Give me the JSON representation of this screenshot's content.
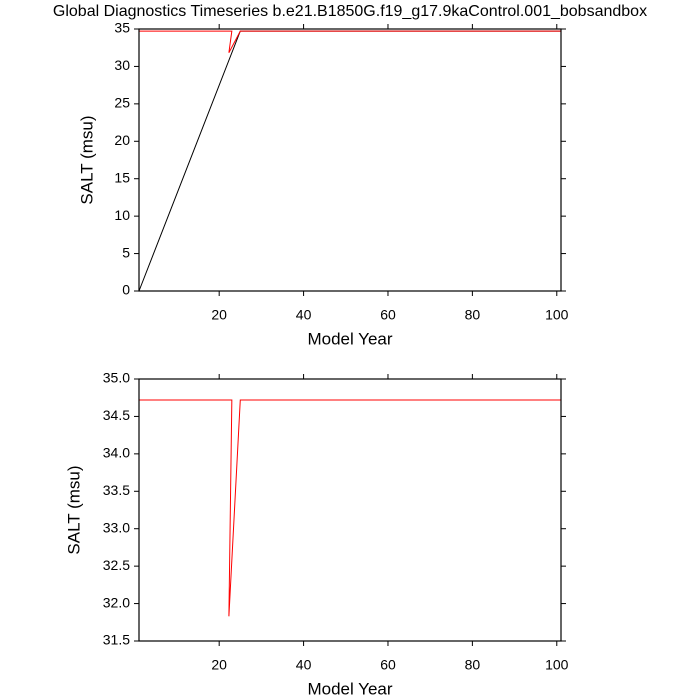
{
  "chart_data": [
    {
      "type": "line",
      "title": "Global Diagnostics Timeseries b.e21.B1850G.f19_g17.9kaControl.001_bobsandbox",
      "xlabel": "Model Year",
      "ylabel": "SALT (msu)",
      "xlim": [
        1,
        101
      ],
      "ylim": [
        0,
        35
      ],
      "xticks": [
        20,
        40,
        60,
        80,
        100
      ],
      "yticks": [
        0,
        5,
        10,
        15,
        20,
        25,
        30,
        35
      ],
      "series": [
        {
          "color": "#000000",
          "x": [
            1,
            25,
            101
          ],
          "values": [
            0,
            34.72,
            34.72
          ]
        },
        {
          "color": "#ff0000",
          "x": [
            1,
            23,
            22.3,
            25,
            101
          ],
          "values": [
            34.72,
            34.72,
            31.83,
            34.72,
            34.72
          ]
        }
      ]
    },
    {
      "type": "line",
      "xlabel": "Model Year",
      "ylabel": "SALT (msu)",
      "xlim": [
        1,
        101
      ],
      "ylim": [
        31.5,
        35
      ],
      "xticks": [
        20,
        40,
        60,
        80,
        100
      ],
      "yticks": [
        31.5,
        {
          "value": 32,
          "label": "32.0"
        },
        32.5,
        {
          "value": 33,
          "label": "33.0"
        },
        33.5,
        {
          "value": 34,
          "label": "34.0"
        },
        34.5,
        {
          "value": 35,
          "label": "35.0"
        }
      ],
      "series": [
        {
          "color": "#ff0000",
          "x": [
            1,
            23,
            22.3,
            25,
            101
          ],
          "values": [
            34.72,
            34.72,
            31.83,
            34.72,
            34.72
          ]
        }
      ]
    }
  ]
}
